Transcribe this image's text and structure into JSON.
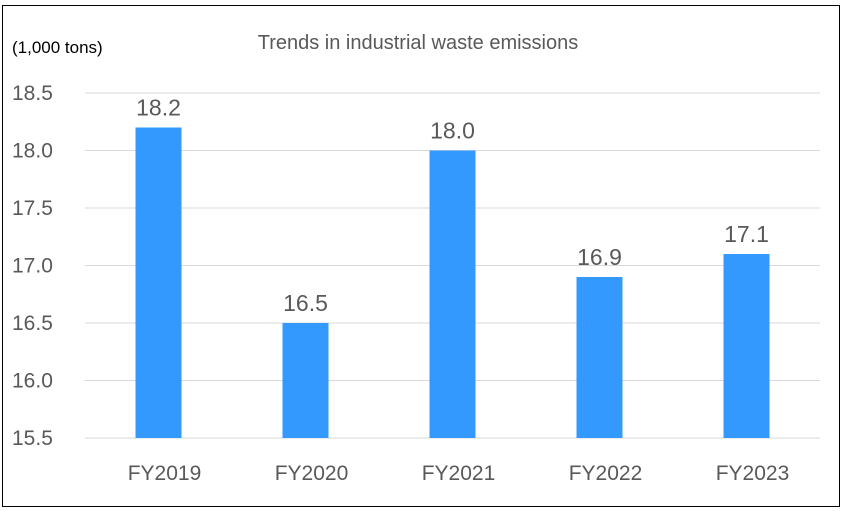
{
  "chart_data": {
    "type": "bar",
    "title": "Trends in industrial waste emissions",
    "ylabel": "(1,000 tons)",
    "xlabel": "",
    "categories": [
      "FY2019",
      "FY2020",
      "FY2021",
      "FY2022",
      "FY2023"
    ],
    "values": [
      18.2,
      16.5,
      18.0,
      16.9,
      17.1
    ],
    "data_labels": [
      "18.2",
      "16.5",
      "18.0",
      "16.9",
      "17.1"
    ],
    "ylim": [
      15.5,
      18.5
    ],
    "yticks": [
      "15.5",
      "16.0",
      "16.5",
      "17.0",
      "17.5",
      "18.0",
      "18.5"
    ],
    "grid": true,
    "legend": "none",
    "bar_color": "#3399FF",
    "gridline_color": "#D9D9D9"
  }
}
